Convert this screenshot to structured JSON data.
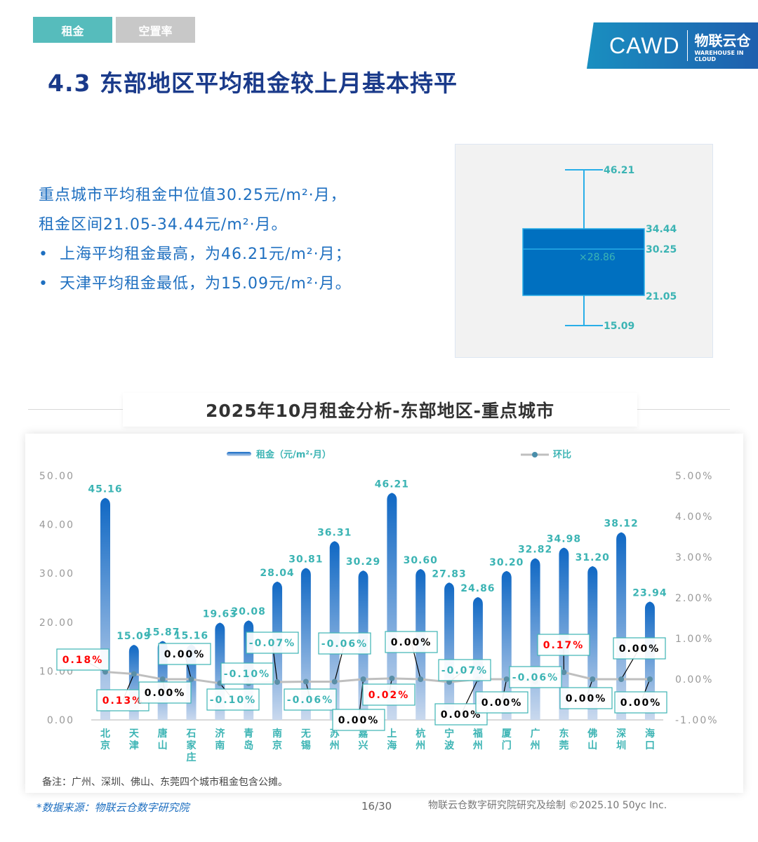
{
  "tabs": [
    {
      "label": "租金",
      "active": true
    },
    {
      "label": "空置率",
      "active": false
    }
  ],
  "logo": {
    "cawd": "CAWD",
    "brand": "物联云仓",
    "brand_en": "WAREHOUSE IN CLOUD"
  },
  "title": "4.3 东部地区平均租金较上月基本持平",
  "summary": {
    "line1": "重点城市平均租金中位值30.25元/m²·月，",
    "line2": "租金区间21.05-34.44元/m²·月。",
    "bullet1": "上海平均租金最高，为46.21元/m²·月；",
    "bullet2": "天津平均租金最低，为15.09元/m²·月。"
  },
  "boxplot": {
    "max": "46.21",
    "q3": "34.44",
    "median": "30.25",
    "mean": "×28.86",
    "q1": "21.05",
    "min": "15.09",
    "color": "#0070c0"
  },
  "section_title": "2025年10月租金分析-东部地区-重点城市",
  "chart_data": {
    "type": "bar",
    "categories": [
      "北京",
      "天津",
      "唐山",
      "石家庄",
      "济南",
      "青岛",
      "南京",
      "无锡",
      "苏州",
      "嘉兴",
      "上海",
      "杭州",
      "宁波",
      "福州",
      "厦门",
      "广州",
      "东莞",
      "佛山",
      "深圳",
      "海口"
    ],
    "series": [
      {
        "name": "租金（元/m²·月）",
        "type": "bar",
        "axis": "left",
        "values": [
          45.16,
          15.09,
          15.87,
          15.16,
          19.63,
          20.08,
          28.04,
          30.81,
          36.31,
          30.29,
          46.21,
          30.6,
          27.83,
          24.86,
          30.2,
          32.82,
          34.98,
          31.2,
          38.12,
          23.94
        ],
        "color": "#1570c8"
      },
      {
        "name": "环比",
        "type": "line",
        "axis": "right",
        "values": [
          0.18,
          0.13,
          0.0,
          0.0,
          -0.1,
          -0.1,
          -0.07,
          -0.06,
          -0.06,
          0.0,
          0.02,
          0.0,
          -0.07,
          0.0,
          0.0,
          -0.06,
          0.17,
          0.0,
          0.0,
          0.0
        ],
        "color": "#bfbfbf"
      }
    ],
    "bar_labels": [
      "45.16",
      "15.09",
      "15.87",
      "15.16",
      "19.63",
      "20.08",
      "28.04",
      "30.81",
      "36.31",
      "30.29",
      "46.21",
      "30.60",
      "27.83",
      "24.86",
      "30.20",
      "32.82",
      "34.98",
      "31.20",
      "38.12",
      "23.94"
    ],
    "line_labels": [
      "0.18%",
      "0.13%",
      "0.00%",
      "0.00%",
      "-0.10%",
      "-0.10%",
      "-0.07%",
      "-0.06%",
      "-0.06%",
      "0.00%",
      "0.02%",
      "0.00%",
      "-0.07%",
      "0.00%",
      "0.00%",
      "-0.06%",
      "0.17%",
      "0.00%",
      "0.00%",
      "0.00%"
    ],
    "ylim": [
      0,
      50
    ],
    "y_ticks": [
      "0.00",
      "10.00",
      "20.00",
      "30.00",
      "40.00",
      "50.00"
    ],
    "y2lim": [
      -1,
      5
    ],
    "y2_ticks": [
      "-1.00%",
      "0.00%",
      "1.00%",
      "2.00%",
      "3.00%",
      "4.00%",
      "5.00%"
    ],
    "legend": "top-center",
    "grid": false,
    "colors": {
      "positive": "#ff0000",
      "negative": "#3cb4b4",
      "zero": "#000000",
      "label": "#3cb4b4"
    }
  },
  "note": "备注：广州、深圳、佛山、东莞四个城市租金包含公摊。",
  "footer": {
    "source": "*数据来源：物联云仓数字研究院",
    "page": "16/30",
    "credit": "物联云仓数字研究院研究及绘制 ©2025.10 50yc Inc."
  }
}
